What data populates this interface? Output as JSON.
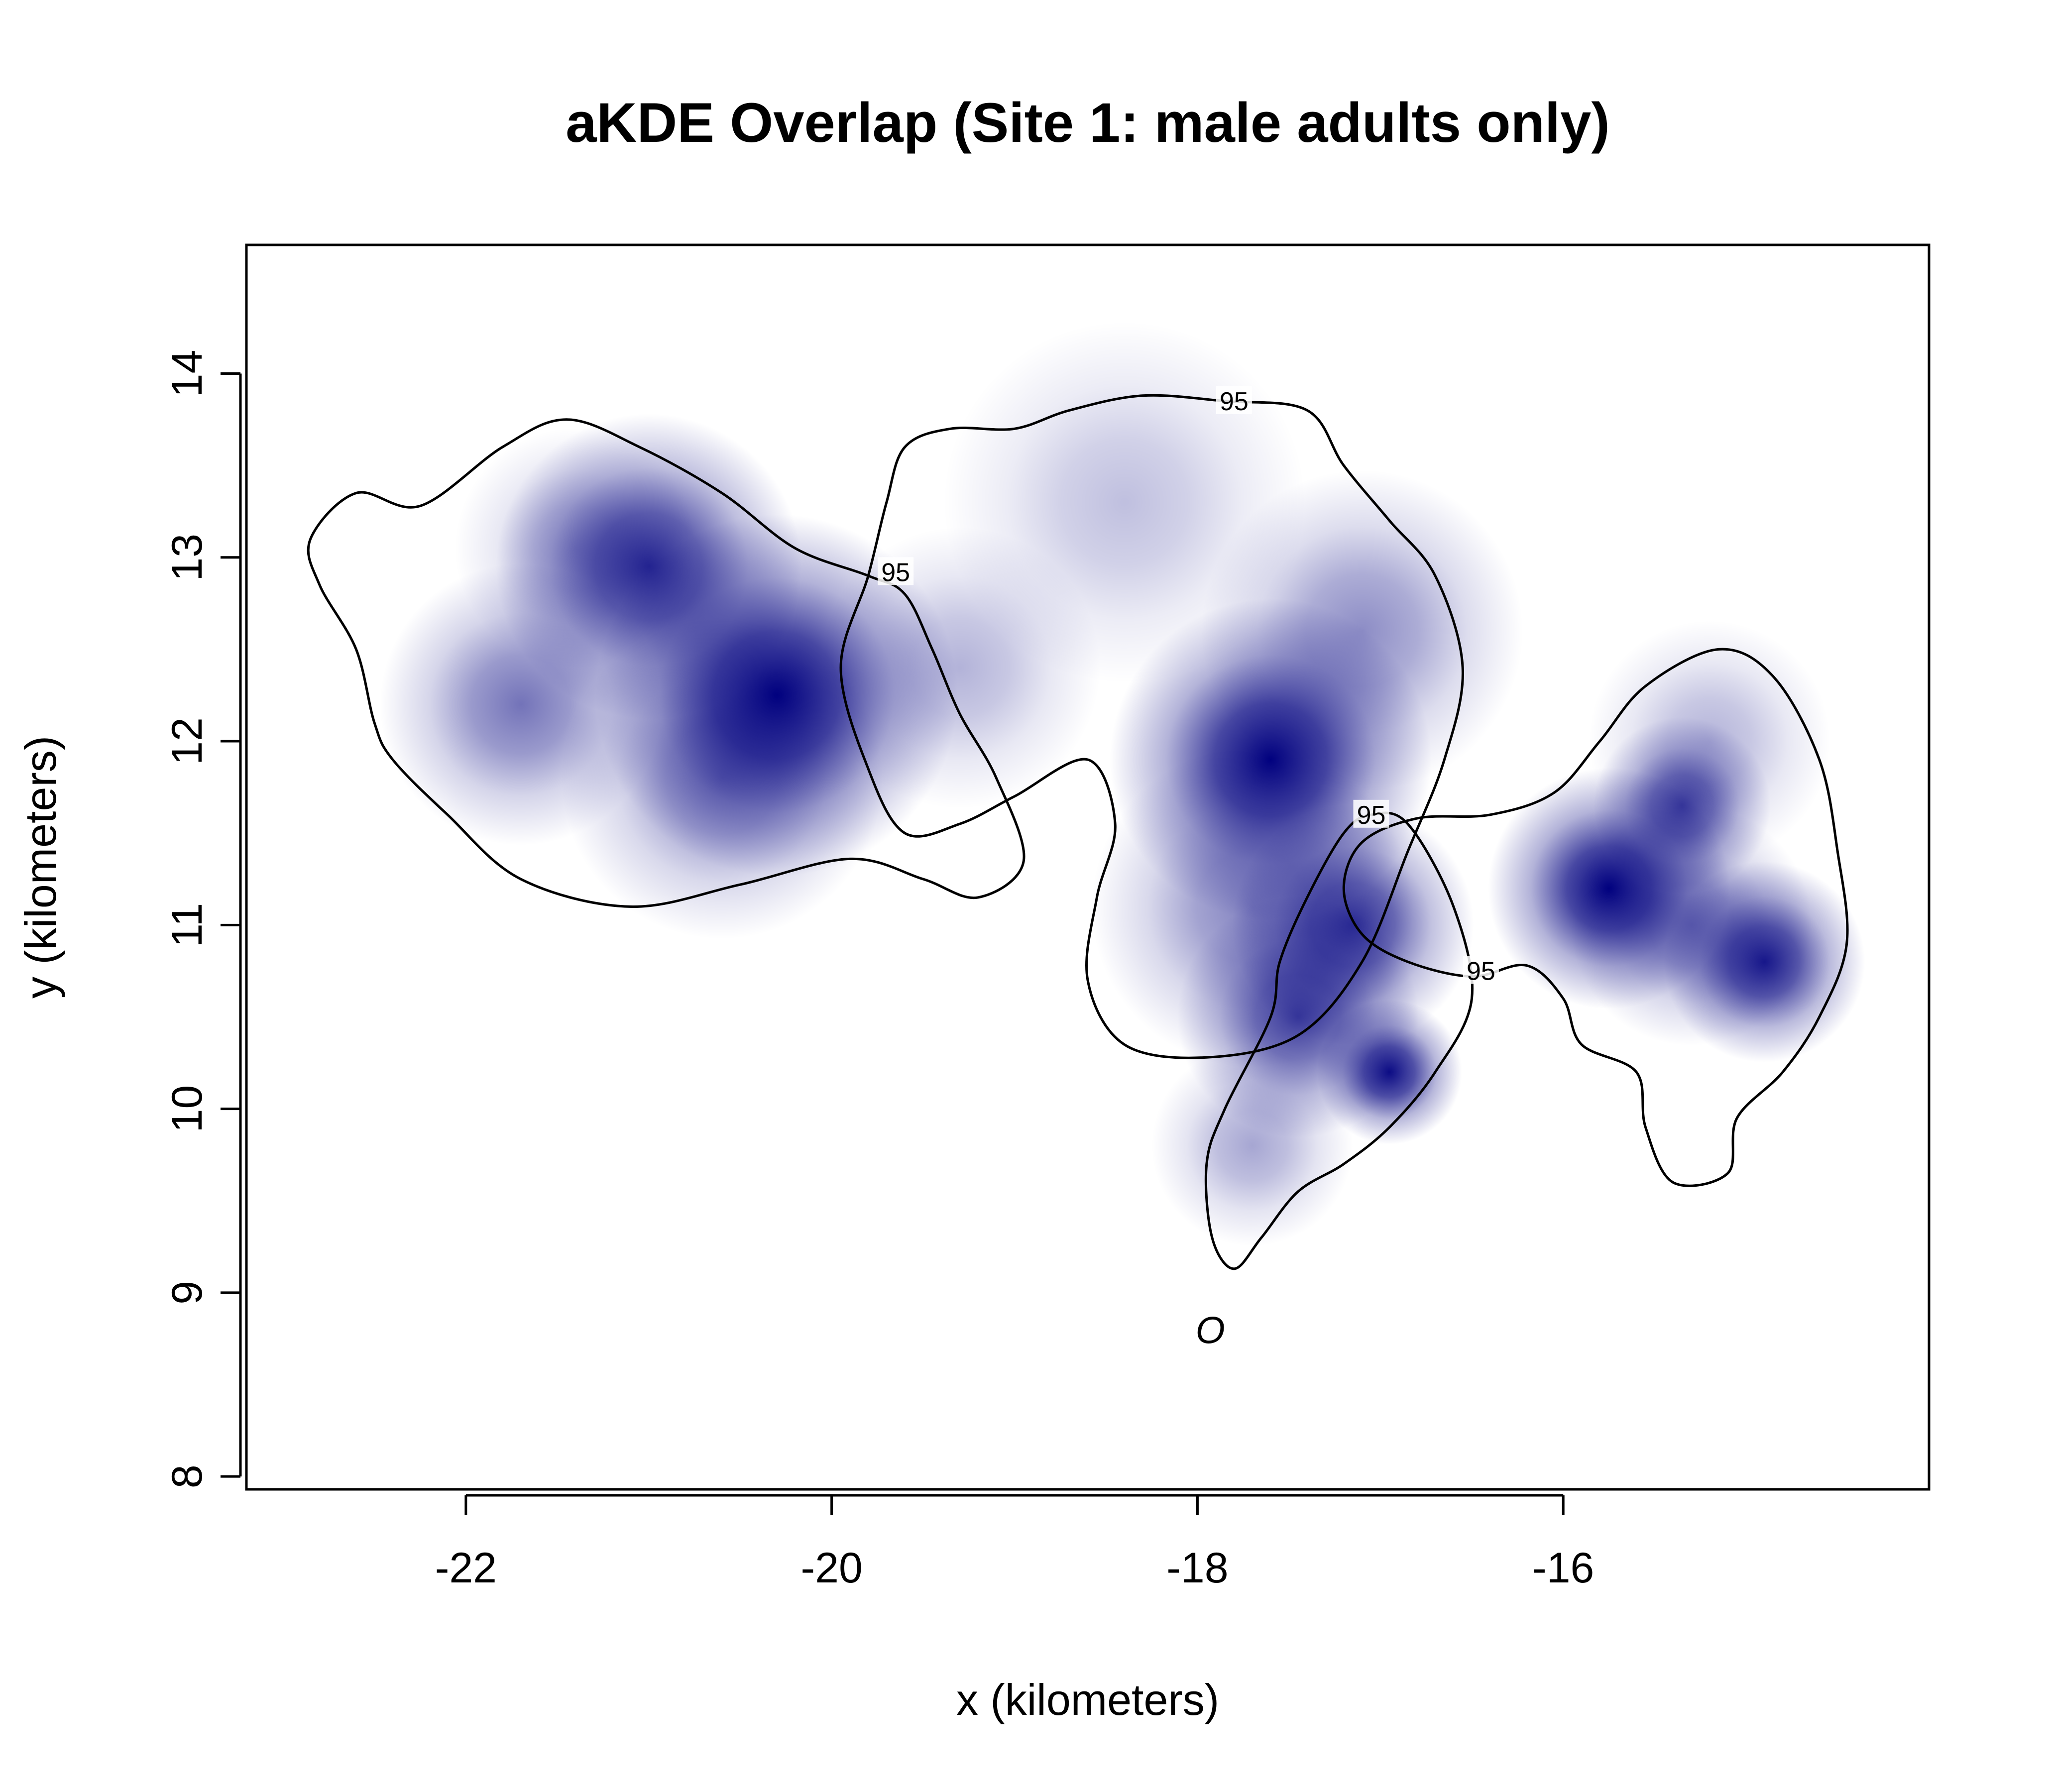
{
  "chart_data": {
    "type": "heatmap",
    "title": "aKDE Overlap (Site 1: male adults only)",
    "xlabel": "x (kilometers)",
    "ylabel": "y (kilometers)",
    "xlim": [
      -23.2,
      -14.0
    ],
    "ylim": [
      7.93,
      14.7
    ],
    "x_ticks": [
      -22,
      -20,
      -18,
      -16
    ],
    "y_ticks": [
      8,
      9,
      10,
      11,
      12,
      13,
      14
    ],
    "x_tick_labels": [
      "-22",
      "-20",
      "-18",
      "-16"
    ],
    "y_tick_labels": [
      "8",
      "9",
      "10",
      "11",
      "12",
      "13",
      "14"
    ],
    "grid": false,
    "colors": {
      "density": "#00007f",
      "contour": "#000000",
      "frame": "#000000"
    },
    "density_peaks": [
      {
        "x": -21.0,
        "y": 12.95,
        "weight": 0.85,
        "spread": 0.38
      },
      {
        "x": -20.3,
        "y": 12.25,
        "weight": 1.0,
        "spread": 0.45
      },
      {
        "x": -21.7,
        "y": 12.2,
        "weight": 0.55,
        "spread": 0.35
      },
      {
        "x": -21.4,
        "y": 13.05,
        "weight": 0.3,
        "spread": 0.3
      },
      {
        "x": -20.6,
        "y": 11.8,
        "weight": 0.5,
        "spread": 0.4
      },
      {
        "x": -19.3,
        "y": 12.4,
        "weight": 0.3,
        "spread": 0.35
      },
      {
        "x": -18.4,
        "y": 13.3,
        "weight": 0.25,
        "spread": 0.45
      },
      {
        "x": -17.6,
        "y": 11.9,
        "weight": 1.0,
        "spread": 0.4
      },
      {
        "x": -17.1,
        "y": 12.6,
        "weight": 0.45,
        "spread": 0.4
      },
      {
        "x": -17.7,
        "y": 11.1,
        "weight": 0.5,
        "spread": 0.4
      },
      {
        "x": -17.15,
        "y": 11.0,
        "weight": 0.8,
        "spread": 0.3
      },
      {
        "x": -17.45,
        "y": 10.5,
        "weight": 0.75,
        "spread": 0.3
      },
      {
        "x": -16.95,
        "y": 10.2,
        "weight": 0.95,
        "spread": 0.18
      },
      {
        "x": -17.7,
        "y": 9.8,
        "weight": 0.35,
        "spread": 0.25
      },
      {
        "x": -15.75,
        "y": 11.2,
        "weight": 1.0,
        "spread": 0.3
      },
      {
        "x": -15.35,
        "y": 11.65,
        "weight": 0.75,
        "spread": 0.22
      },
      {
        "x": -14.9,
        "y": 10.8,
        "weight": 0.9,
        "spread": 0.25
      },
      {
        "x": -15.3,
        "y": 11.0,
        "weight": 0.5,
        "spread": 0.3
      },
      {
        "x": -15.2,
        "y": 12.0,
        "weight": 0.3,
        "spread": 0.3
      }
    ],
    "contours": [
      {
        "level_label": "95",
        "label_at": [
          -19.65,
          12.92
        ],
        "points": [
          [
            -22.25,
            13.28
          ],
          [
            -21.8,
            13.6
          ],
          [
            -21.45,
            13.75
          ],
          [
            -21.05,
            13.6
          ],
          [
            -20.6,
            13.35
          ],
          [
            -20.2,
            13.05
          ],
          [
            -19.8,
            12.9
          ],
          [
            -19.6,
            12.8
          ],
          [
            -19.45,
            12.5
          ],
          [
            -19.3,
            12.15
          ],
          [
            -19.1,
            11.8
          ],
          [
            -18.95,
            11.35
          ],
          [
            -19.2,
            11.15
          ],
          [
            -19.5,
            11.25
          ],
          [
            -19.9,
            11.36
          ],
          [
            -20.5,
            11.22
          ],
          [
            -21.1,
            11.1
          ],
          [
            -21.7,
            11.25
          ],
          [
            -22.1,
            11.6
          ],
          [
            -22.4,
            11.9
          ],
          [
            -22.5,
            12.1
          ],
          [
            -22.6,
            12.5
          ],
          [
            -22.8,
            12.85
          ],
          [
            -22.85,
            13.1
          ],
          [
            -22.6,
            13.35
          ]
        ]
      },
      {
        "level_label": "95",
        "label_at": [
          -17.8,
          13.85
        ],
        "points": [
          [
            -19.0,
            13.7
          ],
          [
            -18.7,
            13.8
          ],
          [
            -18.3,
            13.88
          ],
          [
            -17.85,
            13.85
          ],
          [
            -17.4,
            13.8
          ],
          [
            -17.2,
            13.5
          ],
          [
            -16.95,
            13.2
          ],
          [
            -16.7,
            12.9
          ],
          [
            -16.55,
            12.4
          ],
          [
            -16.65,
            11.9
          ],
          [
            -16.85,
            11.4
          ],
          [
            -17.1,
            10.8
          ],
          [
            -17.45,
            10.4
          ],
          [
            -17.95,
            10.28
          ],
          [
            -18.4,
            10.35
          ],
          [
            -18.6,
            10.7
          ],
          [
            -18.55,
            11.15
          ],
          [
            -18.45,
            11.55
          ],
          [
            -18.6,
            11.9
          ],
          [
            -19.0,
            11.7
          ],
          [
            -19.3,
            11.55
          ],
          [
            -19.6,
            11.5
          ],
          [
            -19.8,
            11.85
          ],
          [
            -19.95,
            12.4
          ],
          [
            -19.8,
            12.9
          ],
          [
            -19.7,
            13.3
          ],
          [
            -19.6,
            13.6
          ],
          [
            -19.35,
            13.7
          ]
        ]
      },
      {
        "level_label": "95",
        "label_at": [
          -16.45,
          10.75
        ],
        "points": [
          [
            -17.1,
            11.45
          ],
          [
            -16.8,
            11.58
          ],
          [
            -16.4,
            11.6
          ],
          [
            -16.05,
            11.72
          ],
          [
            -15.8,
            12.0
          ],
          [
            -15.55,
            12.3
          ],
          [
            -15.15,
            12.5
          ],
          [
            -14.85,
            12.35
          ],
          [
            -14.6,
            11.9
          ],
          [
            -14.5,
            11.4
          ],
          [
            -14.45,
            10.9
          ],
          [
            -14.6,
            10.5
          ],
          [
            -14.8,
            10.2
          ],
          [
            -15.05,
            9.95
          ],
          [
            -15.1,
            9.65
          ],
          [
            -15.4,
            9.6
          ],
          [
            -15.55,
            9.9
          ],
          [
            -15.6,
            10.2
          ],
          [
            -15.9,
            10.35
          ],
          [
            -16.0,
            10.6
          ],
          [
            -16.2,
            10.78
          ],
          [
            -16.5,
            10.72
          ],
          [
            -16.85,
            10.8
          ],
          [
            -17.1,
            10.95
          ],
          [
            -17.2,
            11.2
          ]
        ]
      },
      {
        "level_label": "95",
        "label_at": [
          -17.05,
          11.6
        ],
        "points": [
          [
            -16.85,
            11.55
          ],
          [
            -16.6,
            11.1
          ],
          [
            -16.5,
            10.6
          ],
          [
            -16.7,
            10.2
          ],
          [
            -16.95,
            9.9
          ],
          [
            -17.2,
            9.7
          ],
          [
            -17.45,
            9.55
          ],
          [
            -17.65,
            9.3
          ],
          [
            -17.8,
            9.13
          ],
          [
            -17.92,
            9.3
          ],
          [
            -17.95,
            9.7
          ],
          [
            -17.85,
            10.0
          ],
          [
            -17.6,
            10.5
          ],
          [
            -17.55,
            10.8
          ],
          [
            -17.4,
            11.15
          ],
          [
            -17.2,
            11.5
          ],
          [
            -17.05,
            11.6
          ]
        ]
      }
    ],
    "marker": {
      "x": -17.93,
      "y": 8.8,
      "label": "O"
    }
  }
}
